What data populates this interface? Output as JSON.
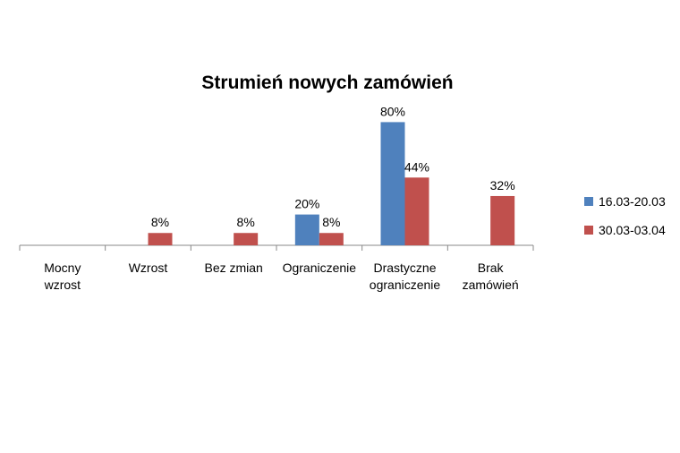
{
  "chart_data": {
    "type": "bar",
    "title": "Strumień nowych zamówień",
    "xlabel": "",
    "ylabel": "",
    "categories": [
      [
        "Mocny",
        "wzrost"
      ],
      [
        "Wzrost"
      ],
      [
        "Bez zmian"
      ],
      [
        "Ograniczenie"
      ],
      [
        "Drastyczne",
        "ograniczenie"
      ],
      [
        "Brak",
        "zamówień"
      ]
    ],
    "series": [
      {
        "name": "16.03-20.03",
        "color": "#4F81BD",
        "values": [
          null,
          null,
          null,
          20,
          80,
          null
        ],
        "labels": [
          "",
          "",
          "",
          "20%",
          "80%",
          ""
        ]
      },
      {
        "name": "30.03-03.04",
        "color": "#C0504D",
        "values": [
          null,
          8,
          8,
          8,
          44,
          32
        ],
        "labels": [
          "",
          "8%",
          "8%",
          "8%",
          "44%",
          "32%"
        ]
      }
    ],
    "ylim": [
      0,
      100
    ],
    "grid": false,
    "legend": "right"
  }
}
